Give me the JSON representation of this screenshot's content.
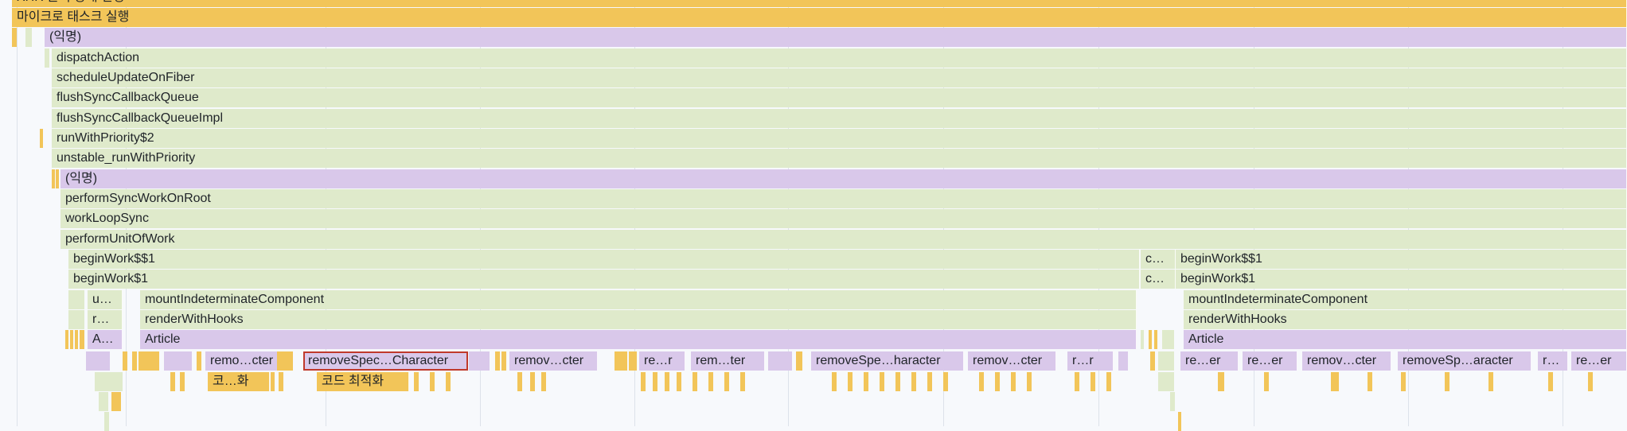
{
  "colors": {
    "task_yellow": "#f2c559",
    "script_green": "#dfeacb",
    "component_purple": "#d9c8ea",
    "selection_border": "#c0392b",
    "background": "#f7f9fc",
    "gridline": "#dde2ea"
  },
  "labels": {
    "top_cut": "XHR 준비 상태 변경",
    "microtask": "마이크로 태스크 실행",
    "anonymous": "(익명)",
    "dispatch_action": "dispatchAction",
    "schedule_update": "scheduleUpdateOnFiber",
    "flush_sync_queue": "flushSyncCallbackQueue",
    "flush_sync_queue_impl": "flushSyncCallbackQueueImpl",
    "run_with_priority": "runWithPriority$2",
    "unstable_run": "unstable_runWithPriority",
    "perform_sync_work": "performSyncWorkOnRoot",
    "work_loop_sync": "workLoopSync",
    "perform_unit": "performUnitOfWork",
    "begin_work_dd": "beginWork$$1",
    "begin_work_1": "beginWork$1",
    "c_trunc": "c…",
    "u_trunc": "u…",
    "r_trunc": "r…",
    "a_trunc": "A…",
    "mount_indeterminate": "mountIndeterminateComponent",
    "render_with_hooks": "renderWithHooks",
    "article": "Article",
    "remo_cter": "remo…cter",
    "remove_spec_selected": "removeSpec…Character",
    "remov_cter": "remov…cter",
    "re_r": "re…r",
    "rem_ter": "rem…ter",
    "remove_spe_haracter": "removeSpe…haracter",
    "r_r": "r…r",
    "re_er": "re…er",
    "remove_sp_aracter": "removeSp…aracter",
    "r_dots": "r…",
    "code_wha": "코…화",
    "code_opt": "코드 최적화"
  }
}
